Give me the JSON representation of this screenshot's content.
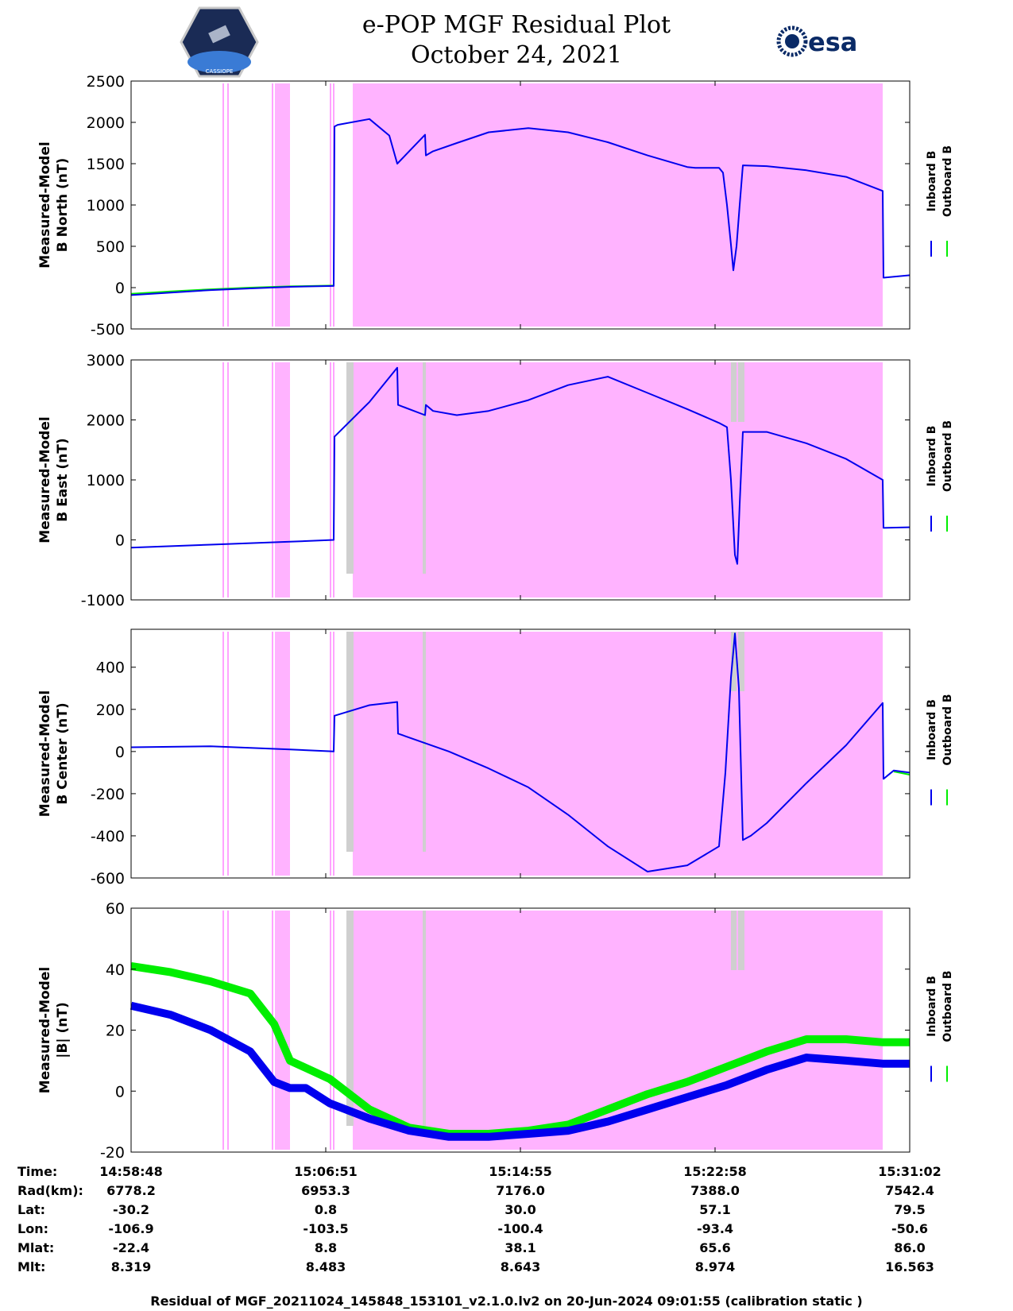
{
  "header": {
    "title_line1": "e-POP MGF Residual Plot",
    "title_line2": "October 24, 2021",
    "left_logo_text": "CASSIOPE",
    "right_logo_text": "esa"
  },
  "legend": {
    "inboard": "Inboard B",
    "outboard": "Outboard B",
    "inboard_color": "#0000ee",
    "outboard_color": "#00ee00"
  },
  "colors": {
    "pink_band": "#ffb3ff",
    "gray_band": "#cfcfcf",
    "pink_line": "#ff66ff"
  },
  "chart_data": [
    {
      "type": "line",
      "ylabel": [
        "Measured-Model",
        "B North (nT)"
      ],
      "ylim": [
        -500,
        2500
      ],
      "yticks": [
        -500,
        0,
        500,
        1000,
        1500,
        2000,
        2500
      ],
      "grey_bands": [],
      "series": [
        {
          "name": "Inboard B",
          "color": "#0000ee",
          "x": [
            0,
            50,
            100,
            150,
            200,
            255,
            256,
            260,
            300,
            325,
            335,
            370,
            371,
            380,
            410,
            450,
            500,
            550,
            600,
            650,
            700,
            710,
            740,
            745,
            750,
            755,
            758,
            762,
            766,
            770,
            800,
            850,
            900,
            946,
            947,
            980
          ],
          "y": [
            -90,
            -60,
            -30,
            -10,
            10,
            20,
            1950,
            1970,
            2040,
            1840,
            1500,
            1850,
            1600,
            1650,
            1750,
            1880,
            1930,
            1880,
            1760,
            1600,
            1460,
            1450,
            1450,
            1390,
            1000,
            520,
            210,
            500,
            1000,
            1480,
            1470,
            1420,
            1340,
            1170,
            120,
            150
          ]
        },
        {
          "name": "Outboard B",
          "color": "#00ee00",
          "x": [
            0,
            50,
            100,
            150,
            200,
            255
          ],
          "y": [
            -75,
            -45,
            -20,
            0,
            15,
            25
          ]
        }
      ]
    },
    {
      "type": "line",
      "ylabel": [
        "Measured-Model",
        "B East (nT)"
      ],
      "ylim": [
        -1000,
        3000
      ],
      "yticks": [
        -1000,
        0,
        1000,
        2000,
        3000
      ],
      "grey_bands": [
        [
          755,
          762
        ],
        [
          764,
          772
        ]
      ],
      "series": [
        {
          "name": "Inboard B",
          "color": "#0000ee",
          "x": [
            0,
            100,
            200,
            255,
            256,
            300,
            335,
            336,
            370,
            371,
            380,
            410,
            450,
            500,
            550,
            600,
            650,
            700,
            740,
            750,
            755,
            760,
            763,
            766,
            770,
            800,
            850,
            900,
            946,
            947,
            980
          ],
          "y": [
            -130,
            -80,
            -30,
            0,
            1720,
            2300,
            2870,
            2250,
            2080,
            2250,
            2150,
            2080,
            2150,
            2330,
            2580,
            2720,
            2450,
            2180,
            1950,
            1880,
            1000,
            -250,
            -400,
            600,
            1800,
            1800,
            1610,
            1350,
            1000,
            200,
            210
          ]
        }
      ]
    },
    {
      "type": "line",
      "ylabel": [
        "Measured-Model",
        "B Center (nT)"
      ],
      "ylim": [
        -600,
        580
      ],
      "yticks": [
        -600,
        -400,
        -200,
        0,
        200,
        400
      ],
      "grey_bands": [
        [
          755,
          762
        ],
        [
          764,
          772
        ]
      ],
      "series": [
        {
          "name": "Inboard B",
          "color": "#0000ee",
          "x": [
            0,
            100,
            200,
            255,
            256,
            300,
            335,
            336,
            400,
            450,
            500,
            550,
            600,
            650,
            700,
            740,
            748,
            755,
            760,
            765,
            770,
            780,
            800,
            850,
            900,
            946,
            947,
            960,
            980
          ],
          "y": [
            20,
            25,
            10,
            0,
            170,
            220,
            235,
            85,
            0,
            -80,
            -170,
            -300,
            -450,
            -570,
            -540,
            -450,
            -100,
            350,
            560,
            300,
            -420,
            -400,
            -340,
            -150,
            30,
            230,
            -130,
            -90,
            -100
          ]
        },
        {
          "name": "Outboard B",
          "color": "#00ee00",
          "x": [
            960,
            980
          ],
          "y": [
            -95,
            -110
          ]
        }
      ]
    },
    {
      "type": "line",
      "ylabel": [
        "Measured-Model",
        "|B| (nT)"
      ],
      "ylim": [
        -20,
        60
      ],
      "yticks": [
        -20,
        0,
        20,
        40,
        60
      ],
      "grey_bands": [
        [
          755,
          762
        ],
        [
          764,
          772
        ]
      ],
      "series": [
        {
          "name": "Outboard B",
          "color": "#00ee00",
          "x": [
            0,
            50,
            100,
            150,
            180,
            200,
            250,
            300,
            350,
            400,
            450,
            500,
            550,
            600,
            650,
            700,
            750,
            800,
            850,
            900,
            946,
            980
          ],
          "y": [
            41,
            39,
            36,
            32,
            22,
            10,
            4,
            -6,
            -12,
            -14,
            -14,
            -13,
            -11,
            -6,
            -1,
            3,
            8,
            13,
            17,
            17,
            16,
            16
          ]
        },
        {
          "name": "Inboard B",
          "color": "#0000ee",
          "x": [
            0,
            50,
            100,
            150,
            180,
            200,
            220,
            250,
            300,
            350,
            400,
            450,
            500,
            550,
            600,
            650,
            700,
            750,
            800,
            850,
            900,
            946,
            980
          ],
          "y": [
            28,
            25,
            20,
            13,
            3,
            1,
            1,
            -4,
            -9,
            -13,
            -15,
            -15,
            -14,
            -13,
            -10,
            -6,
            -2,
            2,
            7,
            11,
            10,
            9,
            9
          ]
        }
      ]
    }
  ],
  "time_axis": {
    "xlim": [
      0,
      980
    ],
    "pink_bands": [
      [
        181,
        200
      ],
      [
        279,
        946
      ]
    ],
    "pink_lines": [
      116,
      122,
      178,
      251,
      255
    ],
    "grey_thin_bands": [
      [
        271,
        280
      ],
      [
        367,
        371
      ]
    ]
  },
  "table": {
    "labels": [
      "Time:",
      "Rad(km):",
      "Lat:",
      "Lon:",
      "Mlat:",
      "Mlt:"
    ],
    "columns": [
      [
        "14:58:48",
        "6778.2",
        "-30.2",
        "-106.9",
        "-22.4",
        "8.319"
      ],
      [
        "15:06:51",
        "6953.3",
        "0.8",
        "-103.5",
        "8.8",
        "8.483"
      ],
      [
        "15:14:55",
        "7176.0",
        "30.0",
        "-100.4",
        "38.1",
        "8.643"
      ],
      [
        "15:22:58",
        "7388.0",
        "57.1",
        "-93.4",
        "65.6",
        "8.974"
      ],
      [
        "15:31:02",
        "7542.4",
        "79.5",
        "-50.6",
        "86.0",
        "16.563"
      ]
    ]
  },
  "footer": "Residual of MGF_20211024_145848_153101_v2.1.0.lv2 on 20-Jun-2024 09:01:55 (calibration static )"
}
